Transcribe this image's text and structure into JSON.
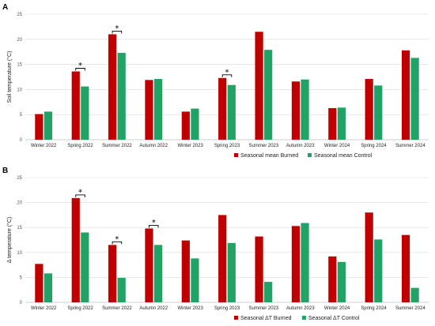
{
  "chart_data": [
    {
      "panel": "A",
      "type": "bar",
      "ylabel": "Soil temperature (°C)",
      "ylim": [
        0,
        25
      ],
      "yticks": [
        0,
        5,
        10,
        15,
        20,
        25
      ],
      "grid": true,
      "legend_position": "bottom-right",
      "categories": [
        "Winter 2022",
        "Spring 2022",
        "Summer 2022",
        "Autumn 2022",
        "Winter 2023",
        "Spring 2023",
        "Summer 2023",
        "Autumn 2023",
        "Winter 2024",
        "Spring 2024",
        "Summer 2024"
      ],
      "series": [
        {
          "name": "Seasonal mean Burned",
          "color": "#c00000",
          "values": [
            5.1,
            13.6,
            21.0,
            11.9,
            5.6,
            12.3,
            21.5,
            11.6,
            6.3,
            12.1,
            17.8
          ]
        },
        {
          "name": "Seasonal mean Control",
          "color": "#21a366",
          "values": [
            5.6,
            10.6,
            17.3,
            12.1,
            6.2,
            10.9,
            17.9,
            12.0,
            6.4,
            10.8,
            16.3
          ]
        }
      ],
      "significance": [
        1,
        2,
        5
      ],
      "significance_mark": "*"
    },
    {
      "panel": "B",
      "type": "bar",
      "ylabel": "Δ temperature (°C)",
      "ylim": [
        0,
        25
      ],
      "yticks": [
        0,
        5,
        10,
        15,
        20,
        25
      ],
      "grid": true,
      "legend_position": "bottom-right",
      "categories": [
        "Winter 2022",
        "Spring 2022",
        "Summer 2022",
        "Autumn 2022",
        "Winter 2023",
        "Spring 2023",
        "Summer 2023",
        "Autumn 2023",
        "Winter 2024",
        "Spring 2024",
        "Summer 2024"
      ],
      "series": [
        {
          "name": "Seasonal ΔT Burned",
          "color": "#c00000",
          "values": [
            7.7,
            20.9,
            11.5,
            14.8,
            12.4,
            17.5,
            13.2,
            15.3,
            9.2,
            18.0,
            13.5
          ]
        },
        {
          "name": "Seasonal ΔT Control",
          "color": "#21a366",
          "values": [
            5.8,
            14.0,
            4.9,
            11.5,
            8.8,
            11.9,
            4.1,
            15.9,
            8.1,
            12.6,
            2.9
          ]
        }
      ],
      "significance": [
        1,
        2,
        3
      ],
      "significance_mark": "*"
    }
  ]
}
